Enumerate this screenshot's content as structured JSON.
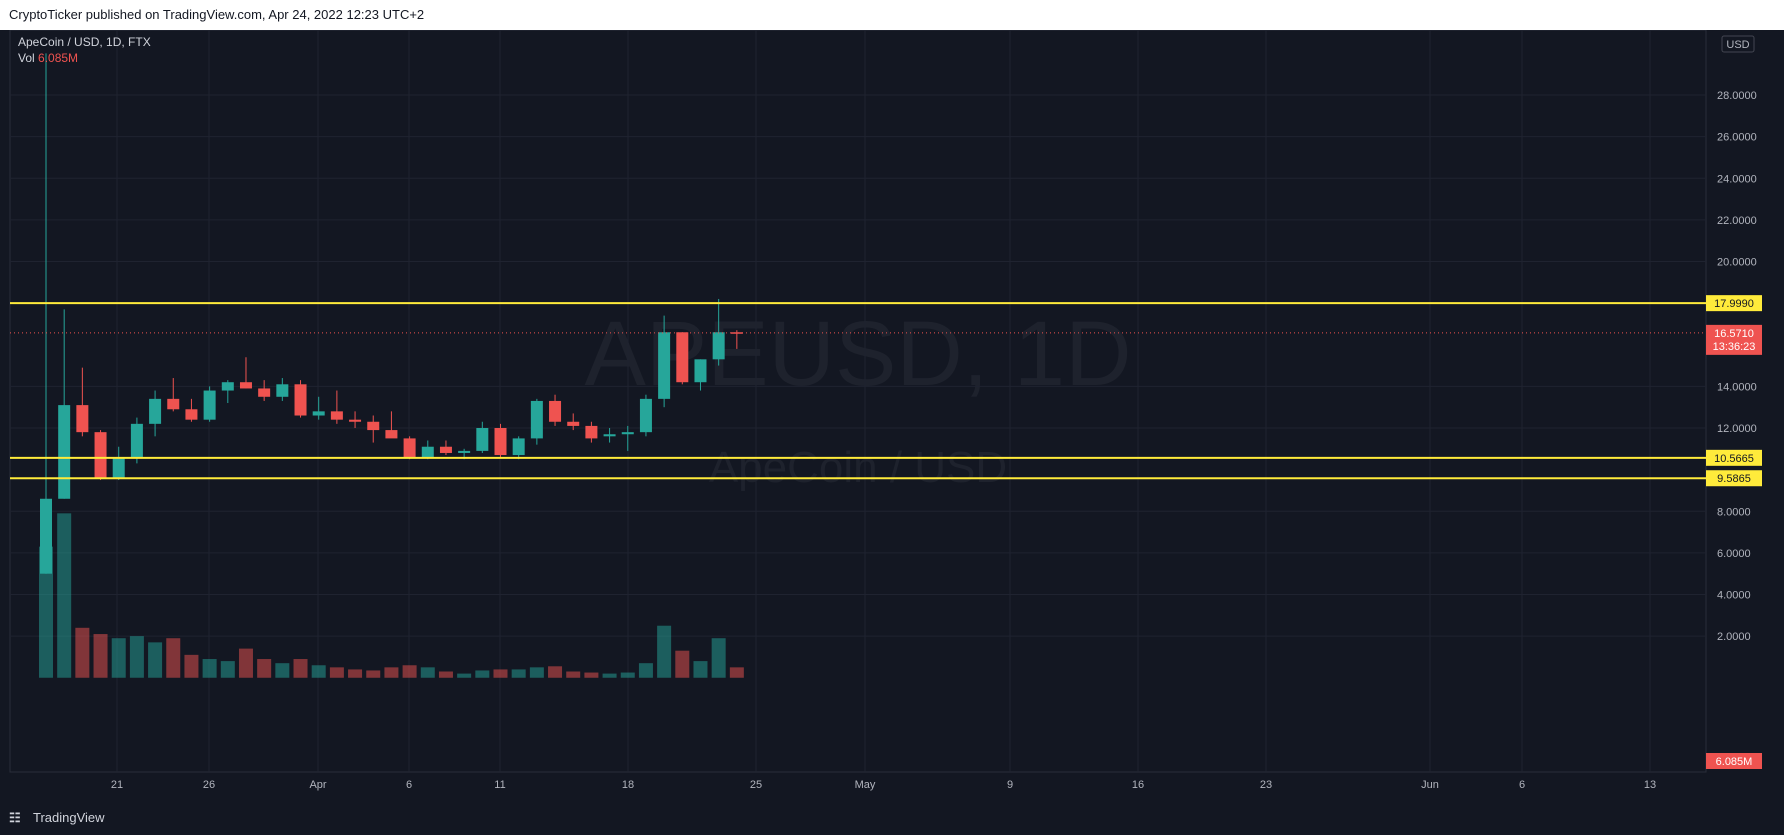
{
  "header": {
    "published": "CryptoTicker published on TradingView.com, Apr 24, 2022 12:23 UTC+2"
  },
  "legend": {
    "symbol": "ApeCoin / USD, 1D, FTX",
    "vol_label": "Vol",
    "vol_value": "6.085M"
  },
  "watermark": {
    "line1": "APEUSD, 1D",
    "line2": "ApeCoin / USD"
  },
  "footer": {
    "logo": "TradingView"
  },
  "colors": {
    "up": "#26a69a",
    "down": "#ef5350",
    "level": "#ffeb3b",
    "bg": "#131722",
    "grid": "#1f2330",
    "axis_text": "#b2b5be"
  },
  "chart_data": {
    "type": "candlestick",
    "title": "ApeCoin / USD, 1D, FTX",
    "currency": "USD",
    "y_ticks": [
      "28.0000",
      "26.0000",
      "24.0000",
      "22.0000",
      "20.0000",
      "14.0000",
      "12.0000",
      "8.0000",
      "6.0000",
      "4.0000",
      "2.0000"
    ],
    "x_ticks": [
      "21",
      "26",
      "Apr",
      "6",
      "11",
      "18",
      "25",
      "May",
      "9",
      "16",
      "23",
      "Jun",
      "6",
      "13"
    ],
    "levels": [
      {
        "label": "17.9990",
        "value": 17.999
      },
      {
        "label": "10.5665",
        "value": 10.5665
      },
      {
        "label": "9.5865",
        "value": 9.5865
      }
    ],
    "last_price": {
      "label": "16.5710",
      "value": 16.571,
      "countdown": "13:36:23"
    },
    "volume_last": "6.085M",
    "candles": [
      {
        "o": 5.0,
        "h": 30.0,
        "l": 5.0,
        "c": 8.6,
        "v": 6.3
      },
      {
        "o": 8.6,
        "h": 17.7,
        "l": 8.6,
        "c": 13.1,
        "v": 7.9
      },
      {
        "o": 13.1,
        "h": 14.9,
        "l": 11.6,
        "c": 11.8,
        "v": 2.4
      },
      {
        "o": 11.8,
        "h": 11.9,
        "l": 9.5,
        "c": 9.6,
        "v": 2.1
      },
      {
        "o": 9.6,
        "h": 11.1,
        "l": 9.5,
        "c": 10.6,
        "v": 1.9
      },
      {
        "o": 10.6,
        "h": 12.5,
        "l": 10.3,
        "c": 12.2,
        "v": 2.0
      },
      {
        "o": 12.2,
        "h": 13.8,
        "l": 11.6,
        "c": 13.4,
        "v": 1.7
      },
      {
        "o": 13.4,
        "h": 14.4,
        "l": 12.8,
        "c": 12.9,
        "v": 1.9
      },
      {
        "o": 12.9,
        "h": 13.4,
        "l": 12.3,
        "c": 12.4,
        "v": 1.1
      },
      {
        "o": 12.4,
        "h": 14.0,
        "l": 12.3,
        "c": 13.8,
        "v": 0.9
      },
      {
        "o": 13.8,
        "h": 14.3,
        "l": 13.2,
        "c": 14.2,
        "v": 0.8
      },
      {
        "o": 14.2,
        "h": 15.4,
        "l": 13.9,
        "c": 13.9,
        "v": 1.4
      },
      {
        "o": 13.9,
        "h": 14.3,
        "l": 13.3,
        "c": 13.5,
        "v": 0.9
      },
      {
        "o": 13.5,
        "h": 14.4,
        "l": 13.3,
        "c": 14.1,
        "v": 0.7
      },
      {
        "o": 14.1,
        "h": 14.3,
        "l": 12.5,
        "c": 12.6,
        "v": 0.9
      },
      {
        "o": 12.6,
        "h": 13.5,
        "l": 12.4,
        "c": 12.8,
        "v": 0.6
      },
      {
        "o": 12.8,
        "h": 13.8,
        "l": 12.2,
        "c": 12.4,
        "v": 0.5
      },
      {
        "o": 12.4,
        "h": 12.8,
        "l": 12.0,
        "c": 12.3,
        "v": 0.4
      },
      {
        "o": 12.3,
        "h": 12.6,
        "l": 11.3,
        "c": 11.9,
        "v": 0.35
      },
      {
        "o": 11.9,
        "h": 12.8,
        "l": 11.6,
        "c": 11.5,
        "v": 0.5
      },
      {
        "o": 11.5,
        "h": 11.6,
        "l": 10.5,
        "c": 10.6,
        "v": 0.6
      },
      {
        "o": 10.6,
        "h": 11.4,
        "l": 10.5,
        "c": 11.1,
        "v": 0.5
      },
      {
        "o": 11.1,
        "h": 11.4,
        "l": 10.7,
        "c": 10.8,
        "v": 0.3
      },
      {
        "o": 10.8,
        "h": 11.0,
        "l": 10.5,
        "c": 10.9,
        "v": 0.2
      },
      {
        "o": 10.9,
        "h": 12.3,
        "l": 10.8,
        "c": 12.0,
        "v": 0.35
      },
      {
        "o": 12.0,
        "h": 12.2,
        "l": 10.6,
        "c": 10.7,
        "v": 0.4
      },
      {
        "o": 10.7,
        "h": 11.6,
        "l": 10.5,
        "c": 11.5,
        "v": 0.4
      },
      {
        "o": 11.5,
        "h": 13.4,
        "l": 11.2,
        "c": 13.3,
        "v": 0.5
      },
      {
        "o": 13.3,
        "h": 13.6,
        "l": 12.1,
        "c": 12.3,
        "v": 0.55
      },
      {
        "o": 12.3,
        "h": 12.7,
        "l": 11.9,
        "c": 12.1,
        "v": 0.3
      },
      {
        "o": 12.1,
        "h": 12.3,
        "l": 11.3,
        "c": 11.5,
        "v": 0.25
      },
      {
        "o": 11.6,
        "h": 12.0,
        "l": 11.3,
        "c": 11.7,
        "v": 0.2
      },
      {
        "o": 11.7,
        "h": 12.1,
        "l": 10.9,
        "c": 11.8,
        "v": 0.25
      },
      {
        "o": 11.8,
        "h": 13.6,
        "l": 11.6,
        "c": 13.4,
        "v": 0.7
      },
      {
        "o": 13.4,
        "h": 17.4,
        "l": 13.0,
        "c": 16.6,
        "v": 2.5
      },
      {
        "o": 16.6,
        "h": 16.6,
        "l": 14.1,
        "c": 14.2,
        "v": 1.3
      },
      {
        "o": 14.2,
        "h": 15.3,
        "l": 13.8,
        "c": 15.3,
        "v": 0.8
      },
      {
        "o": 15.3,
        "h": 18.2,
        "l": 15.0,
        "c": 16.6,
        "v": 1.9
      },
      {
        "o": 16.6,
        "h": 16.7,
        "l": 15.8,
        "c": 16.571,
        "v": 0.5
      }
    ]
  }
}
